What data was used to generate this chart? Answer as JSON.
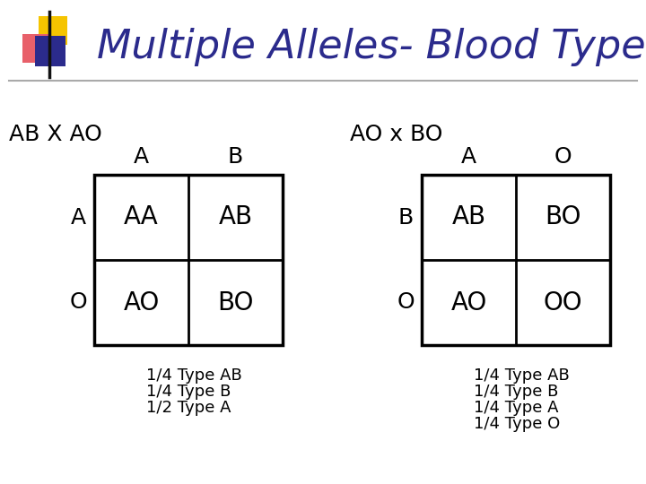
{
  "title": "Multiple Alleles- Blood Type",
  "title_color": "#2B2B8C",
  "title_fontsize": 32,
  "bg_color": "#FFFFFF",
  "left_cross": "AB X AO",
  "left_col_labels": [
    "A",
    "B"
  ],
  "left_row_labels": [
    "A",
    "O"
  ],
  "left_cells": [
    [
      "AA",
      "AB"
    ],
    [
      "AO",
      "BO"
    ]
  ],
  "left_notes": [
    "1/4 Type AB",
    "1/4 Type B",
    "1/2 Type A"
  ],
  "right_cross": "AO x BO",
  "right_col_labels": [
    "A",
    "O"
  ],
  "right_row_labels": [
    "B",
    "O"
  ],
  "right_cells": [
    [
      "AB",
      "BO"
    ],
    [
      "AO",
      "OO"
    ]
  ],
  "right_notes": [
    "1/4 Type AB",
    "1/4 Type B",
    "1/4 Type A",
    "1/4 Type O"
  ],
  "cell_fontsize": 20,
  "label_fontsize": 18,
  "cross_fontsize": 18,
  "note_fontsize": 13,
  "text_color": "#000000",
  "logo_yellow": "#F5C400",
  "logo_red": "#E8606A",
  "logo_blue": "#2B2B8C",
  "line_color": "#AAAAAA"
}
